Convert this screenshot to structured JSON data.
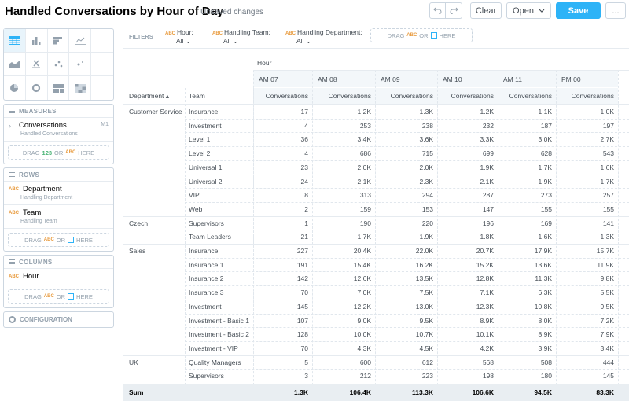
{
  "header": {
    "title": "Handled Conversations by Hour of Day",
    "status": "Unsaved changes",
    "clear_label": "Clear",
    "open_label": "Open",
    "save_label": "Save",
    "more_label": "..."
  },
  "filters": {
    "label": "FILTERS",
    "items": [
      {
        "name": "Hour:",
        "value": "All"
      },
      {
        "name": "Handling Team:",
        "value": "All"
      },
      {
        "name": "Handling Department:",
        "value": "All"
      }
    ],
    "drop": {
      "drag": "DRAG",
      "abc": "ABC",
      "or": "OR",
      "here": "HERE"
    }
  },
  "measures": {
    "label": "MEASURES",
    "items": [
      {
        "name": "Conversations",
        "sub": "Handled Conversations",
        "key": "M1"
      }
    ],
    "drop": {
      "drag": "DRAG",
      "num": "123",
      "or": "OR",
      "abc": "ABC",
      "here": "HERE"
    }
  },
  "rows": {
    "label": "ROWS",
    "items": [
      {
        "name": "Department",
        "sub": "Handling Department"
      },
      {
        "name": "Team",
        "sub": "Handling Team"
      }
    ],
    "drop": {
      "drag": "DRAG",
      "abc": "ABC",
      "or": "OR",
      "here": "HERE"
    }
  },
  "columns": {
    "label": "COLUMNS",
    "items": [
      {
        "name": "Hour"
      }
    ],
    "drop": {
      "drag": "DRAG",
      "abc": "ABC",
      "or": "OR",
      "here": "HERE"
    }
  },
  "configuration": {
    "label": "CONFIGURATION"
  },
  "abc_tag": "ABC",
  "table": {
    "column_attr": "Hour",
    "dept_header": "Department",
    "team_header": "Team",
    "hours": [
      "AM 07",
      "AM 08",
      "AM 09",
      "AM 10",
      "AM 11",
      "PM 00"
    ],
    "measure": "Conversations",
    "rows": [
      {
        "dept": "Customer Service",
        "team": "Insurance",
        "v": [
          "17",
          "1.2K",
          "1.3K",
          "1.2K",
          "1.1K",
          "1.0K"
        ]
      },
      {
        "dept": "",
        "team": "Investment",
        "v": [
          "4",
          "253",
          "238",
          "232",
          "187",
          "197"
        ]
      },
      {
        "dept": "",
        "team": "Level 1",
        "v": [
          "36",
          "3.4K",
          "3.6K",
          "3.3K",
          "3.0K",
          "2.7K"
        ]
      },
      {
        "dept": "",
        "team": "Level 2",
        "v": [
          "4",
          "686",
          "715",
          "699",
          "628",
          "543"
        ]
      },
      {
        "dept": "",
        "team": "Universal 1",
        "v": [
          "23",
          "2.0K",
          "2.0K",
          "1.9K",
          "1.7K",
          "1.6K"
        ]
      },
      {
        "dept": "",
        "team": "Universal 2",
        "v": [
          "24",
          "2.1K",
          "2.3K",
          "2.1K",
          "1.9K",
          "1.7K"
        ]
      },
      {
        "dept": "",
        "team": "VIP",
        "v": [
          "8",
          "313",
          "294",
          "287",
          "273",
          "257"
        ]
      },
      {
        "dept": "",
        "team": "Web",
        "v": [
          "2",
          "159",
          "153",
          "147",
          "155",
          "155"
        ]
      },
      {
        "dept": "Czech",
        "team": "Supervisors",
        "v": [
          "1",
          "190",
          "220",
          "196",
          "169",
          "141"
        ]
      },
      {
        "dept": "",
        "team": "Team Leaders",
        "v": [
          "21",
          "1.7K",
          "1.9K",
          "1.8K",
          "1.6K",
          "1.3K"
        ]
      },
      {
        "dept": "Sales",
        "team": "Insurance",
        "v": [
          "227",
          "20.4K",
          "22.0K",
          "20.7K",
          "17.9K",
          "15.7K"
        ]
      },
      {
        "dept": "",
        "team": "Insurance 1",
        "v": [
          "191",
          "15.4K",
          "16.2K",
          "15.2K",
          "13.6K",
          "11.9K"
        ]
      },
      {
        "dept": "",
        "team": "Insurance 2",
        "v": [
          "142",
          "12.6K",
          "13.5K",
          "12.8K",
          "11.3K",
          "9.8K"
        ]
      },
      {
        "dept": "",
        "team": "Insurance 3",
        "v": [
          "70",
          "7.0K",
          "7.5K",
          "7.1K",
          "6.3K",
          "5.5K"
        ]
      },
      {
        "dept": "",
        "team": "Investment",
        "v": [
          "145",
          "12.2K",
          "13.0K",
          "12.3K",
          "10.8K",
          "9.5K"
        ]
      },
      {
        "dept": "",
        "team": "Investment - Basic 1",
        "v": [
          "107",
          "9.0K",
          "9.5K",
          "8.9K",
          "8.0K",
          "7.2K"
        ]
      },
      {
        "dept": "",
        "team": "Investment - Basic 2",
        "v": [
          "128",
          "10.0K",
          "10.7K",
          "10.1K",
          "8.9K",
          "7.9K"
        ]
      },
      {
        "dept": "",
        "team": "Investment - VIP",
        "v": [
          "70",
          "4.3K",
          "4.5K",
          "4.2K",
          "3.9K",
          "3.4K"
        ]
      },
      {
        "dept": "UK",
        "team": "Quality Managers",
        "v": [
          "5",
          "600",
          "612",
          "568",
          "508",
          "444"
        ]
      },
      {
        "dept": "",
        "team": "Supervisors",
        "v": [
          "3",
          "212",
          "223",
          "198",
          "180",
          "145"
        ]
      }
    ],
    "sum": {
      "label": "Sum",
      "v": [
        "1.3K",
        "106.4K",
        "113.3K",
        "106.6K",
        "94.5K",
        "83.3K"
      ]
    }
  },
  "colors": {
    "accent": "#2db3f7",
    "abc": "#e89a3c",
    "num": "#49b375"
  }
}
